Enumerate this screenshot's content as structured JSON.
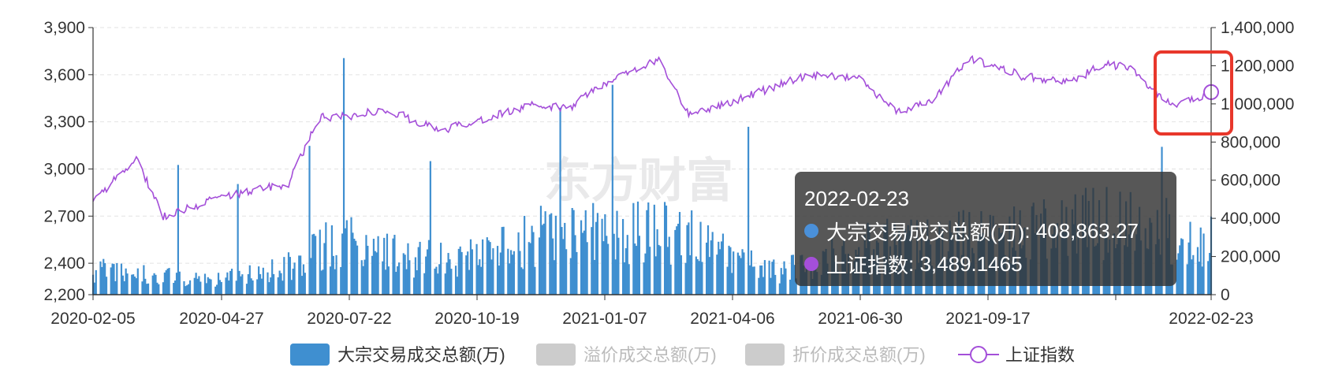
{
  "chart_data": {
    "type": "bar+line",
    "watermark": "东方财富",
    "x_axis": {
      "start": "2020-02-05",
      "end": "2022-02-23",
      "tick_labels": [
        "2020-02-05",
        "2020-04-27",
        "2020-07-22",
        "2020-10-19",
        "2021-01-07",
        "2021-04-06",
        "2021-06-30",
        "2021-09-17",
        "",
        "2022-02-23"
      ]
    },
    "y_left": {
      "ticks": [
        3900,
        3600,
        3300,
        3000,
        2700,
        2400,
        2200
      ],
      "tick_labels": [
        "3,900",
        "3,600",
        "3,300",
        "3,000",
        "2,700",
        "2,400",
        "2,200"
      ],
      "range": [
        2200,
        3900
      ]
    },
    "y_right": {
      "ticks": [
        1400000,
        1200000,
        1000000,
        800000,
        600000,
        400000,
        200000,
        0
      ],
      "tick_labels": [
        "1,400,000",
        "1,200,000",
        "1,000,000",
        "800,000",
        "600,000",
        "400,000",
        "200,000",
        "0"
      ],
      "range": [
        0,
        1400000
      ]
    },
    "legend": {
      "position": "bottom-center",
      "items": [
        {
          "name": "大宗交易成交总额(万)",
          "color": "#3f8fd0",
          "active": true
        },
        {
          "name": "溢价成交总额(万)",
          "color": "#cccccc",
          "active": false
        },
        {
          "name": "折价成交总额(万)",
          "color": "#cccccc",
          "active": false
        },
        {
          "name": "上证指数",
          "color": "#a44fd9",
          "active": true
        }
      ]
    },
    "index_anchors": [
      {
        "x": "2020-02-05",
        "y": 2790
      },
      {
        "x": "2020-03-05",
        "y": 3070
      },
      {
        "x": "2020-03-23",
        "y": 2700
      },
      {
        "x": "2020-04-27",
        "y": 2810
      },
      {
        "x": "2020-06-15",
        "y": 2910
      },
      {
        "x": "2020-07-06",
        "y": 3330
      },
      {
        "x": "2020-07-22",
        "y": 3330
      },
      {
        "x": "2020-08-20",
        "y": 3380
      },
      {
        "x": "2020-09-25",
        "y": 3240
      },
      {
        "x": "2020-10-19",
        "y": 3310
      },
      {
        "x": "2020-11-25",
        "y": 3400
      },
      {
        "x": "2020-12-20",
        "y": 3390
      },
      {
        "x": "2021-01-07",
        "y": 3520
      },
      {
        "x": "2021-02-18",
        "y": 3700
      },
      {
        "x": "2021-03-10",
        "y": 3350
      },
      {
        "x": "2021-04-06",
        "y": 3420
      },
      {
        "x": "2021-05-28",
        "y": 3600
      },
      {
        "x": "2021-06-30",
        "y": 3590
      },
      {
        "x": "2021-07-28",
        "y": 3360
      },
      {
        "x": "2021-08-20",
        "y": 3430
      },
      {
        "x": "2021-09-14",
        "y": 3710
      },
      {
        "x": "2021-10-20",
        "y": 3590
      },
      {
        "x": "2021-11-20",
        "y": 3550
      },
      {
        "x": "2021-12-14",
        "y": 3670
      },
      {
        "x": "2021-12-31",
        "y": 3640
      },
      {
        "x": "2022-01-27",
        "y": 3400
      },
      {
        "x": "2022-02-23",
        "y": 3489.1465
      }
    ],
    "volume_profile": [
      {
        "x": "2020-02-05",
        "y": 130000
      },
      {
        "x": "2020-04-27",
        "y": 75000
      },
      {
        "x": "2020-06-15",
        "y": 150000
      },
      {
        "x": "2020-07-22",
        "y": 320000
      },
      {
        "x": "2020-09-01",
        "y": 190000
      },
      {
        "x": "2020-10-19",
        "y": 200000
      },
      {
        "x": "2020-12-01",
        "y": 330000
      },
      {
        "x": "2021-01-07",
        "y": 320000
      },
      {
        "x": "2021-03-01",
        "y": 350000
      },
      {
        "x": "2021-04-06",
        "y": 200000
      },
      {
        "x": "2021-05-10",
        "y": 120000
      },
      {
        "x": "2021-06-30",
        "y": 260000
      },
      {
        "x": "2021-09-17",
        "y": 300000
      },
      {
        "x": "2021-12-20",
        "y": 400000
      },
      {
        "x": "2022-02-23",
        "y": 290000
      }
    ],
    "volume_spikes": [
      {
        "x": "2020-04-02",
        "y": 680000
      },
      {
        "x": "2020-05-12",
        "y": 580000
      },
      {
        "x": "2020-06-29",
        "y": 780000
      },
      {
        "x": "2020-07-22",
        "y": 1240000
      },
      {
        "x": "2020-09-18",
        "y": 700000
      },
      {
        "x": "2020-12-14",
        "y": 980000
      },
      {
        "x": "2021-01-18",
        "y": 1100000
      },
      {
        "x": "2021-04-19",
        "y": 880000
      },
      {
        "x": "2022-01-21",
        "y": 775000
      },
      {
        "x": "2022-02-23",
        "y": 408863.27
      }
    ],
    "highlighted_point": {
      "x": "2022-02-23",
      "index": 3489.1465,
      "volume": 408863.27
    }
  },
  "tooltip": {
    "date": "2022-02-23",
    "rows": [
      {
        "label": "大宗交易成交总额(万)",
        "value": "408,863.27",
        "color": "#4a90d9"
      },
      {
        "label": "上证指数",
        "value": "3,489.1465",
        "color": "#a44fd9"
      }
    ]
  }
}
